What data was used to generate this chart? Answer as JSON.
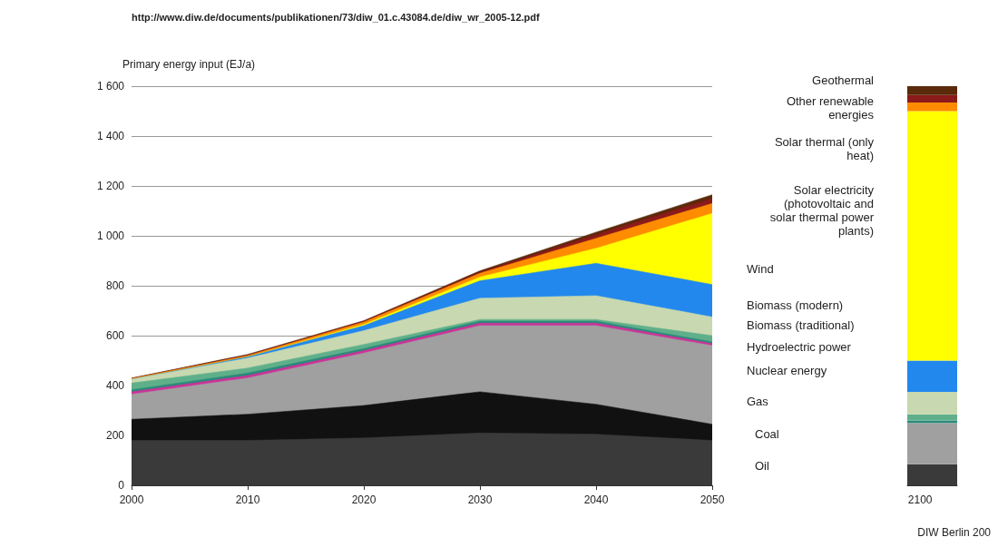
{
  "chart_data": [
    {
      "type": "area",
      "stacked": true,
      "ylabel": "Primary energy input (EJ/a)",
      "x": [
        2000,
        2010,
        2020,
        2030,
        2040,
        2050
      ],
      "xlim": [
        2000,
        2050
      ],
      "xticks": [
        2000,
        2010,
        2020,
        2030,
        2040,
        2050
      ],
      "ylim": [
        0,
        1600
      ],
      "yticks": [
        0,
        200,
        400,
        600,
        800,
        {
          "value": 1000,
          "label": "1 000"
        },
        {
          "value": 1200,
          "label": "1 200"
        },
        {
          "value": 1400,
          "label": "1 400"
        },
        {
          "value": 1600,
          "label": "1 600"
        }
      ],
      "grid": "y",
      "legend": false,
      "annotations": [
        "http://www.diw.de/documents/publikationen/73/diw_01.c.43084.de/diw_wr_2005-12.pdf",
        "DIW Berlin 200"
      ],
      "series": [
        {
          "name": "Oil",
          "color": "#3a3a3a",
          "values": [
            180,
            180,
            190,
            210,
            205,
            180
          ]
        },
        {
          "name": "Coal",
          "color": "#111111",
          "values": [
            85,
            105,
            130,
            165,
            120,
            65
          ]
        },
        {
          "name": "Gas",
          "color": "#a0a0a0",
          "values": [
            100,
            145,
            210,
            265,
            315,
            315
          ]
        },
        {
          "name": "Nuclear energy",
          "color": "#cc3399",
          "values": [
            10,
            10,
            10,
            10,
            10,
            8
          ]
        },
        {
          "name": "Hydroelectric power",
          "color": "#2a8a7a",
          "values": [
            8,
            10,
            8,
            8,
            8,
            7
          ]
        },
        {
          "name": "Biomass (traditional)",
          "color": "#5fb08a",
          "values": [
            27,
            20,
            17,
            7,
            7,
            25
          ]
        },
        {
          "name": "Biomass (modern)",
          "color": "#c8d8b0",
          "values": [
            15,
            40,
            55,
            85,
            95,
            75
          ]
        },
        {
          "name": "Wind",
          "color": "#2288ee",
          "values": [
            0,
            5,
            20,
            70,
            130,
            130
          ]
        },
        {
          "name": "Solar electricity (photovoltaic and solar thermal power plants)",
          "color": "#ffff00",
          "values": [
            0,
            0,
            5,
            15,
            60,
            285
          ]
        },
        {
          "name": "Solar thermal (only heat)",
          "color": "#ff8c00",
          "values": [
            3,
            5,
            10,
            15,
            40,
            40
          ]
        },
        {
          "name": "Other renewable energies",
          "color": "#8b1a1a",
          "values": [
            1,
            2,
            3,
            5,
            15,
            20
          ]
        },
        {
          "name": "Geothermal",
          "color": "#5a2a0a",
          "values": [
            1,
            3,
            2,
            5,
            10,
            15
          ]
        }
      ]
    },
    {
      "type": "bar",
      "stacked": true,
      "categories": [
        "2100"
      ],
      "ylim": [
        0,
        1600
      ],
      "tick_labels": "x",
      "series": [
        {
          "color": "#3a3a3a",
          "values": [
            85
          ]
        },
        {
          "color": "#111111",
          "values": [
            0
          ]
        },
        {
          "color": "#a0a0a0",
          "values": [
            165
          ]
        },
        {
          "color": "#cc3399",
          "values": [
            0
          ]
        },
        {
          "color": "#2a8a7a",
          "values": [
            10
          ]
        },
        {
          "color": "#5fb08a",
          "values": [
            25
          ]
        },
        {
          "color": "#c8d8b0",
          "values": [
            90
          ]
        },
        {
          "color": "#2288ee",
          "values": [
            125
          ]
        },
        {
          "color": "#ffff00",
          "values": [
            1000
          ]
        },
        {
          "color": "#ff8c00",
          "values": [
            35
          ]
        },
        {
          "color": "#8b1a1a",
          "values": [
            30
          ]
        },
        {
          "color": "#5a2a0a",
          "values": [
            35
          ]
        }
      ]
    }
  ]
}
